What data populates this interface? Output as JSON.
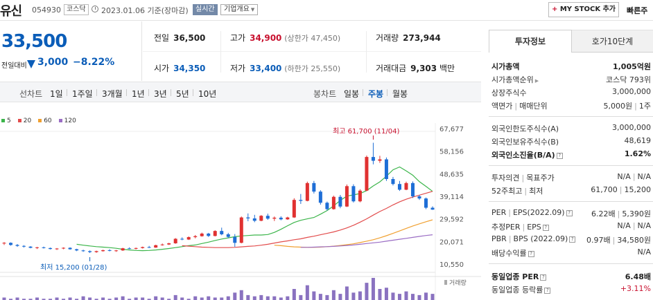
{
  "header": {
    "stock_name": "유신",
    "stock_code": "054930",
    "market": "코스닥",
    "date_text": "2023.01.06 기준(장마감)",
    "realtime_label": "실시간",
    "company_label": "기업개요",
    "mystock_label": "MY STOCK 추가",
    "quick_label": "빠른주"
  },
  "price": {
    "current": "33,500",
    "prev_label": "전일대비",
    "change": "3,000",
    "change_rate": "−8.22%"
  },
  "quote": {
    "prev_close_label": "전일",
    "prev_close": "36,500",
    "high_label": "고가",
    "high": "34,900",
    "high_limit": "(상한가 47,450)",
    "volume_label": "거래량",
    "volume": "273,944",
    "open_label": "시가",
    "open": "34,350",
    "low_label": "저가",
    "low": "33,400",
    "low_limit": "(하한가 25,550)",
    "amount_label": "거래대금",
    "amount": "9,303",
    "amount_unit": "백만"
  },
  "period_bar": {
    "line_label": "선차트",
    "line_periods": [
      "1일",
      "1주일",
      "3개월",
      "1년",
      "3년",
      "5년",
      "10년"
    ],
    "candle_label": "봉차트",
    "candle_periods": [
      "일봉",
      "주봉",
      "월봉"
    ],
    "active_candle": "주봉"
  },
  "chart_data": {
    "type": "candlestick",
    "y_ticks": [
      "67,677",
      "58,156",
      "48,635",
      "39,114",
      "29,592",
      "20,071",
      "10,550"
    ],
    "ylim": [
      10550,
      67677
    ],
    "legend": [
      {
        "name": "5",
        "color": "#3bb54a"
      },
      {
        "name": "20",
        "color": "#e24b4b"
      },
      {
        "name": "60",
        "color": "#f0a030"
      },
      {
        "name": "120",
        "color": "#9a6cc4"
      }
    ],
    "volume_label": "거래량",
    "high_annotation": "최고 61,700 (11/04)",
    "low_annotation": "최저 15,200 (01/28)",
    "up_color": "#e03131",
    "down_color": "#1e6ed6",
    "candles": [
      [
        19200,
        19800,
        18600,
        19500
      ],
      [
        19500,
        19700,
        18300,
        18600
      ],
      [
        18600,
        19000,
        17800,
        18200
      ],
      [
        18200,
        18500,
        17500,
        17900
      ],
      [
        17900,
        18100,
        17200,
        17400
      ],
      [
        17400,
        17800,
        16900,
        17600
      ],
      [
        17600,
        17900,
        17100,
        17300
      ],
      [
        17300,
        17500,
        16700,
        16900
      ],
      [
        16900,
        17300,
        16500,
        17100
      ],
      [
        17100,
        17600,
        16800,
        17400
      ],
      [
        17400,
        17600,
        16600,
        16800
      ],
      [
        16800,
        17000,
        16000,
        16300
      ],
      [
        16300,
        16600,
        15700,
        16000
      ],
      [
        16000,
        16300,
        15200,
        15600
      ],
      [
        15600,
        16200,
        15300,
        16000
      ],
      [
        16000,
        16600,
        15800,
        16400
      ],
      [
        16400,
        16800,
        15900,
        16100
      ],
      [
        16100,
        16500,
        15700,
        16300
      ],
      [
        16300,
        17400,
        16100,
        17200
      ],
      [
        17200,
        17600,
        16800,
        17000
      ],
      [
        17000,
        17500,
        16700,
        17300
      ],
      [
        17300,
        17900,
        17100,
        17700
      ],
      [
        17700,
        18200,
        17300,
        17500
      ],
      [
        17500,
        18700,
        17400,
        18500
      ],
      [
        18500,
        19200,
        18300,
        18800
      ],
      [
        18800,
        19500,
        18600,
        19300
      ],
      [
        19300,
        21500,
        19100,
        21200
      ],
      [
        21200,
        21800,
        20600,
        20900
      ],
      [
        20900,
        22200,
        20700,
        21900
      ],
      [
        21900,
        22800,
        21400,
        22300
      ],
      [
        22300,
        23800,
        22100,
        23400
      ],
      [
        23400,
        23700,
        22000,
        22400
      ],
      [
        22400,
        24800,
        22200,
        24500
      ],
      [
        24500,
        25900,
        22700,
        23100
      ],
      [
        23100,
        23700,
        21500,
        22000
      ],
      [
        22000,
        23200,
        17800,
        19500
      ],
      [
        19500,
        30600,
        19300,
        30200
      ],
      [
        30200,
        31900,
        28600,
        29800
      ],
      [
        29800,
        31300,
        28200,
        28800
      ],
      [
        28800,
        31200,
        28600,
        30900
      ],
      [
        30900,
        31800,
        29200,
        29700
      ],
      [
        29700,
        30600,
        28700,
        30100
      ],
      [
        30100,
        30700,
        29000,
        29400
      ],
      [
        29400,
        30500,
        29200,
        30200
      ],
      [
        30200,
        38300,
        30000,
        37600
      ],
      [
        37600,
        40100,
        35900,
        37200
      ],
      [
        37200,
        45300,
        37000,
        44700
      ],
      [
        44700,
        45600,
        40300,
        41100
      ],
      [
        41100,
        41700,
        35600,
        36400
      ],
      [
        36400,
        36900,
        33100,
        33700
      ],
      [
        33700,
        39400,
        33500,
        38900
      ],
      [
        38900,
        39700,
        34100,
        34800
      ],
      [
        34800,
        44100,
        34600,
        43400
      ],
      [
        43400,
        44200,
        36500,
        37000
      ],
      [
        37000,
        42100,
        36600,
        41500
      ],
      [
        41500,
        56300,
        41300,
        55700
      ],
      [
        55700,
        61700,
        52600,
        54100
      ],
      [
        54100,
        56200,
        53200,
        54700
      ],
      [
        54700,
        55500,
        45600,
        46400
      ],
      [
        46400,
        47300,
        43700,
        44300
      ],
      [
        44300,
        45600,
        41400,
        41900
      ],
      [
        41900,
        45300,
        41700,
        44700
      ],
      [
        44700,
        45400,
        38400,
        39100
      ],
      [
        39100,
        39700,
        37600,
        38200
      ],
      [
        38200,
        38600,
        33700,
        34300
      ],
      [
        34300,
        34900,
        33400,
        33500
      ]
    ],
    "ma_lines": [
      {
        "name": "5",
        "values": [
          18900,
          18500,
          18200,
          17900,
          17700,
          17500,
          17200,
          16800,
          16500,
          16300,
          16200,
          16300,
          16500,
          16800,
          17100,
          17500,
          17900,
          18300,
          18600,
          19200,
          19800,
          20500,
          21100,
          21600,
          22100,
          22400,
          22600,
          22800,
          22800,
          23000,
          23900,
          25200,
          26700,
          28100,
          29000,
          29600,
          30200,
          31600,
          33100,
          35100,
          37400,
          39200,
          39700,
          40300,
          41500,
          43500,
          45200,
          47600,
          50300,
          51500,
          49800,
          48000,
          45300,
          43300,
          41200
        ]
      },
      {
        "name": "20",
        "values": [
          18300,
          18100,
          17900,
          17700,
          17600,
          17500,
          17500,
          17500,
          17600,
          17800,
          18000,
          18200,
          18500,
          18900,
          19400,
          19900,
          20300,
          20800,
          21200,
          21800,
          22300,
          22900,
          23500,
          24100,
          24900,
          25800,
          26900,
          28200,
          29600,
          31200,
          32700,
          34000,
          35500,
          36800,
          37900,
          38800,
          39600,
          40400,
          41200
        ]
      },
      {
        "name": "60",
        "values": [
          18500,
          18300,
          18000,
          17800,
          17700,
          17600,
          17600,
          17700,
          17900,
          18100,
          18400,
          18700,
          19100,
          19600,
          20200,
          20800,
          21600,
          22500,
          23500,
          24500,
          25600,
          26600,
          27500,
          28400,
          29200
        ]
      },
      {
        "name": "120",
        "values": [
          17600,
          17600,
          17700,
          17800,
          17900,
          18000,
          18200,
          18400,
          18600,
          18900,
          19200,
          19500,
          19800,
          20200,
          20600,
          21000,
          21400,
          21800,
          22200,
          22600,
          22900
        ]
      }
    ],
    "volumes": [
      2,
      1,
      2,
      1,
      1,
      2,
      1,
      1,
      2,
      1,
      2,
      1,
      3,
      2,
      1,
      2,
      1,
      2,
      3,
      1,
      2,
      2,
      1,
      3,
      2,
      1,
      4,
      2,
      1,
      3,
      2,
      3,
      2,
      2,
      3,
      6,
      8,
      4,
      3,
      4,
      3,
      3,
      2,
      3,
      9,
      4,
      12,
      7,
      5,
      4,
      8,
      5,
      11,
      6,
      7,
      14,
      18,
      9,
      10,
      6,
      5,
      7,
      5,
      4,
      6,
      5
    ]
  },
  "right_panel": {
    "tab_active": "투자정보",
    "tab_inactive": "호가10단계",
    "market_cap_label": "시가총액",
    "market_cap": "1,005억원",
    "rank_label": "시가총액순위",
    "rank": "코스닥 793위",
    "shares_label": "상장주식수",
    "shares": "3,000,000",
    "par_label": "액면가",
    "unit_label": "매매단위",
    "par": "5,000원",
    "unit": "1주",
    "foreign_limit_label": "외국인한도주식수(A)",
    "foreign_limit": "3,000,000",
    "foreign_hold_label": "외국인보유주식수(B)",
    "foreign_hold": "48,619",
    "foreign_rate_label": "외국인소진율(B/A)",
    "foreign_rate": "1.62%",
    "opinion_label": "투자의견",
    "target_label": "목표주가",
    "opinion": "N/A",
    "target": "N/A",
    "w52_label": "52주최고",
    "w52_low_label": "최저",
    "w52_high": "61,700",
    "w52_low": "15,200",
    "per_label": "PER",
    "eps_label": "EPS(2022.09)",
    "per": "6.22배",
    "eps": "5,390원",
    "est_per_label": "추정PER",
    "est_eps_label": "EPS",
    "est_per": "N/A",
    "est_eps": "N/A",
    "pbr_label": "PBR",
    "bps_label": "BPS (2022.09)",
    "pbr": "0.97배",
    "bps": "34,580원",
    "div_label": "배당수익률",
    "div": "N/A",
    "ind_per_label": "동일업종 PER",
    "ind_per": "6.48배",
    "ind_chg_label": "동일업종 등락률",
    "ind_chg": "+3.11%"
  }
}
